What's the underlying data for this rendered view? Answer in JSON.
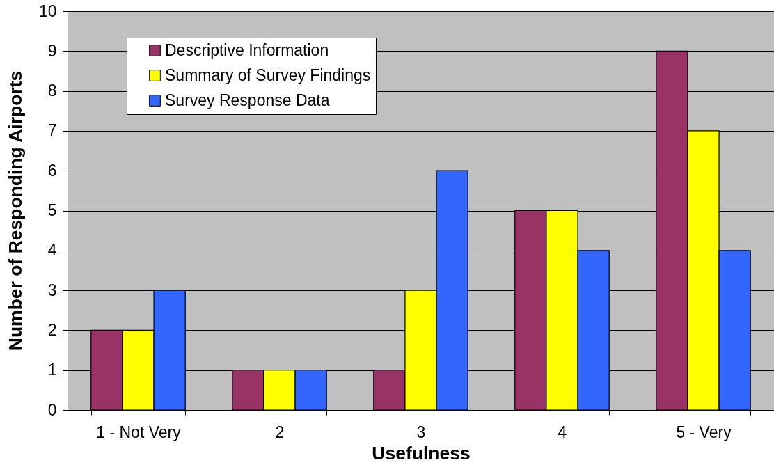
{
  "chart_data": {
    "type": "bar",
    "xlabel": "Usefulness",
    "ylabel": "Number of Responding Airports",
    "categories": [
      "1 - Not Very",
      "2",
      "3",
      "4",
      "5 - Very"
    ],
    "series": [
      {
        "name": "Descriptive Information",
        "color": "#993366",
        "values": [
          2,
          1,
          1,
          5,
          9
        ]
      },
      {
        "name": "Summary of Survey Findings",
        "color": "#ffff00",
        "values": [
          2,
          1,
          3,
          5,
          7
        ]
      },
      {
        "name": "Survey Response Data",
        "color": "#3366ff",
        "values": [
          3,
          1,
          6,
          4,
          4
        ]
      }
    ],
    "ylim": [
      0,
      10
    ],
    "yticks": [
      0,
      1,
      2,
      3,
      4,
      5,
      6,
      7,
      8,
      9,
      10
    ],
    "grid": "y",
    "legend": "top left"
  }
}
